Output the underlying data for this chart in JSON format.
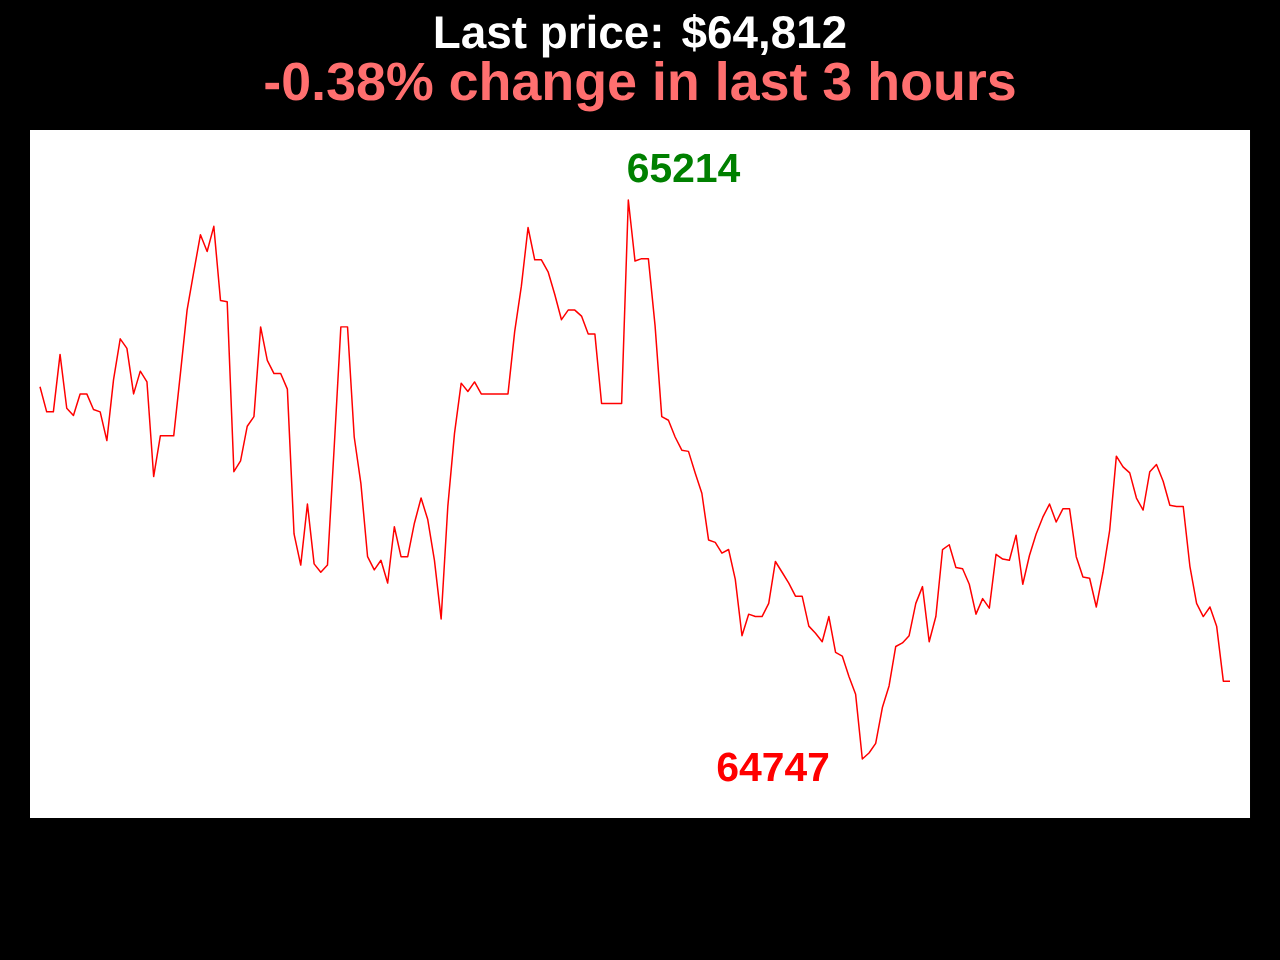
{
  "chart_data": {
    "type": "line",
    "title": "Last price: $64,812",
    "subtitle": "-0.38% change in last 3 hours",
    "categories": [
      null,
      null,
      null,
      null,
      null,
      null,
      null,
      null,
      null,
      null,
      null,
      null,
      null,
      null,
      null,
      null,
      null,
      null,
      null,
      null,
      null,
      null,
      null,
      null,
      null,
      null,
      null,
      null,
      null,
      null,
      null,
      null,
      null,
      null,
      null,
      null,
      null,
      null,
      null,
      null,
      null,
      null,
      null,
      null,
      null,
      null,
      null,
      null,
      null,
      null,
      null,
      null,
      null,
      null,
      null,
      null,
      null,
      null,
      null,
      null,
      null,
      null,
      null,
      null,
      null,
      null,
      null,
      null,
      null,
      null,
      null,
      null,
      null,
      null,
      null,
      null,
      null,
      null,
      null,
      null,
      null,
      null,
      null,
      null,
      null,
      null,
      null,
      null,
      null,
      null,
      null,
      null,
      null,
      null,
      null,
      null,
      null,
      null,
      null,
      null,
      null,
      null,
      null,
      null,
      null,
      null,
      null,
      null,
      null,
      null,
      null,
      null,
      null,
      null,
      null,
      null,
      null,
      null,
      null,
      null,
      null,
      null,
      null,
      null,
      null,
      null,
      null,
      null,
      null,
      null,
      null,
      null,
      null,
      null,
      null,
      null,
      null,
      null,
      null,
      null,
      null,
      null,
      null,
      null,
      null,
      null,
      null,
      null,
      null,
      null,
      null,
      null,
      null,
      null,
      null,
      null,
      null,
      null,
      null,
      null,
      null,
      null,
      null,
      null,
      null,
      null,
      null,
      null,
      null,
      null,
      null,
      null,
      null,
      null,
      null,
      null,
      null,
      null,
      null
    ],
    "values": [
      65058,
      65037,
      65037,
      65085,
      65040,
      65034,
      65052,
      65052,
      65039,
      65037,
      65013,
      65064,
      65098,
      65090,
      65052,
      65071,
      65062,
      64983,
      65017,
      65017,
      65017,
      65069,
      65122,
      65154,
      65185,
      65171,
      65192,
      65130,
      65129,
      64987,
      64996,
      65025,
      65033,
      65108,
      65080,
      65069,
      65069,
      65056,
      64935,
      64909,
      64960,
      64910,
      64903,
      64909,
      65007,
      65108,
      65108,
      65016,
      64977,
      64916,
      64905,
      64913,
      64894,
      64941,
      64916,
      64916,
      64944,
      64965,
      64947,
      64913,
      64864,
      64958,
      65019,
      65061,
      65054,
      65062,
      65052,
      65052,
      65052,
      65052,
      65052,
      65104,
      65142,
      65191,
      65164,
      65164,
      65154,
      65135,
      65114,
      65122,
      65122,
      65117,
      65102,
      65102,
      65044,
      65044,
      65044,
      65044,
      65214,
      65163,
      65165,
      65165,
      65109,
      65033,
      65030,
      65016,
      65005,
      65004,
      64986,
      64969,
      64930,
      64928,
      64919,
      64922,
      64897,
      64850,
      64868,
      64866,
      64866,
      64877,
      64912,
      64903,
      64894,
      64883,
      64883,
      64858,
      64852,
      64845,
      64866,
      64836,
      64833,
      64816,
      64801,
      64747,
      64752,
      64760,
      64790,
      64808,
      64841,
      64844,
      64850,
      64877,
      64891,
      64845,
      64866,
      64922,
      64926,
      64907,
      64906,
      64893,
      64868,
      64881,
      64873,
      64918,
      64914,
      64913,
      64934,
      64893,
      64917,
      64935,
      64949,
      64960,
      64945,
      64956,
      64956,
      64916,
      64899,
      64898,
      64874,
      64903,
      64938,
      65000,
      64991,
      64986,
      64965,
      64955,
      64987,
      64993,
      64979,
      64959,
      64958,
      64958,
      64908,
      64877,
      64866,
      64874,
      64858,
      64812,
      64812
    ],
    "value_labels": [
      null,
      null,
      null,
      null,
      null,
      null,
      null,
      null,
      null,
      null,
      null,
      null,
      null,
      null,
      null,
      null,
      null,
      null,
      null,
      null,
      null,
      null,
      null,
      null,
      null,
      null,
      null,
      null,
      null,
      null,
      null,
      null,
      null,
      null,
      null,
      null,
      null,
      null,
      null,
      null,
      null,
      null,
      null,
      null,
      null,
      null,
      null,
      null,
      null,
      null,
      null,
      null,
      null,
      null,
      null,
      null,
      null,
      null,
      null,
      null,
      null,
      null,
      null,
      null,
      null,
      null,
      null,
      null,
      null,
      null,
      null,
      null,
      null,
      null,
      null,
      null,
      null,
      null,
      null,
      null,
      null,
      null,
      null,
      null,
      null,
      null,
      null,
      null,
      "65214",
      null,
      null,
      null,
      null,
      null,
      null,
      null,
      null,
      null,
      null,
      null,
      null,
      null,
      null,
      null,
      null,
      null,
      null,
      null,
      null,
      null,
      null,
      null,
      null,
      null,
      null,
      null,
      null,
      null,
      null,
      null,
      null,
      null,
      null,
      "64747",
      null,
      null,
      null,
      null,
      null,
      null,
      null,
      null,
      null,
      null,
      null,
      null,
      null,
      null,
      null,
      null,
      null,
      null,
      null,
      null,
      null,
      null,
      null,
      null,
      null,
      null,
      null,
      null,
      null,
      null,
      null,
      null,
      null,
      null,
      null,
      null,
      null,
      null,
      null,
      null,
      null,
      null,
      null,
      null,
      null,
      null,
      null,
      null,
      null,
      null,
      null,
      null,
      null,
      null,
      null
    ],
    "color": "#ff0000"
  }
}
